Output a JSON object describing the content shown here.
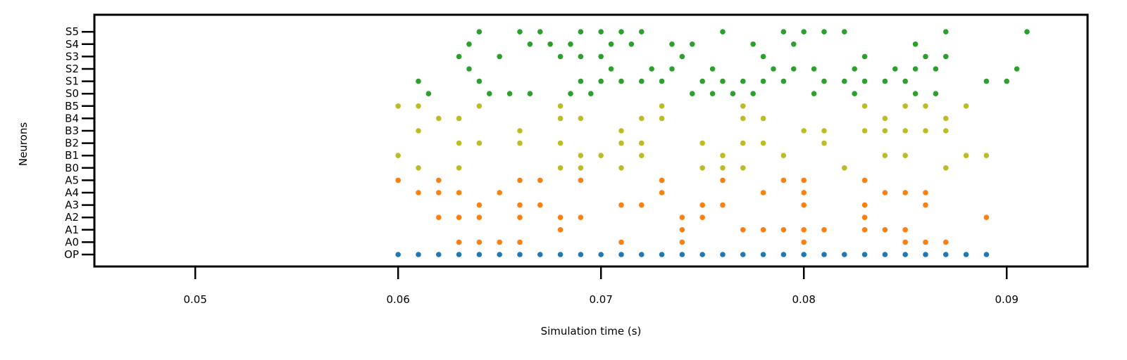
{
  "chart_data": {
    "type": "scatter",
    "title": "",
    "xlabel": "Simulation time (s)",
    "ylabel": "Neurons",
    "xlim": [
      0.045,
      0.094
    ],
    "xticks": [
      0.05,
      0.06,
      0.07,
      0.08,
      0.09
    ],
    "xtick_labels": [
      "0.05",
      "0.06",
      "0.07",
      "0.08",
      "0.09"
    ],
    "grid": false,
    "categories": [
      "OP",
      "A0",
      "A1",
      "A2",
      "A3",
      "A4",
      "A5",
      "B0",
      "B1",
      "B2",
      "B3",
      "B4",
      "B5",
      "S0",
      "S1",
      "S2",
      "S3",
      "S4",
      "S5"
    ],
    "series": [
      {
        "color": "#1f77b4",
        "neurons": [
          {
            "label": "OP",
            "times": [
              0.06,
              0.061,
              0.062,
              0.063,
              0.064,
              0.065,
              0.066,
              0.067,
              0.068,
              0.069,
              0.07,
              0.071,
              0.072,
              0.073,
              0.074,
              0.075,
              0.076,
              0.077,
              0.078,
              0.079,
              0.08,
              0.081,
              0.082,
              0.083,
              0.084,
              0.085,
              0.086,
              0.087,
              0.088,
              0.089
            ]
          }
        ]
      },
      {
        "color": "#ff7f0e",
        "neurons": [
          {
            "label": "A0",
            "times": [
              0.063,
              0.064,
              0.065,
              0.066,
              0.071,
              0.074,
              0.08,
              0.085,
              0.086,
              0.087
            ]
          },
          {
            "label": "A1",
            "times": [
              0.068,
              0.074,
              0.077,
              0.078,
              0.079,
              0.08,
              0.081,
              0.083,
              0.084,
              0.085
            ]
          },
          {
            "label": "A2",
            "times": [
              0.062,
              0.063,
              0.064,
              0.066,
              0.068,
              0.069,
              0.074,
              0.075,
              0.083,
              0.089
            ]
          },
          {
            "label": "A3",
            "times": [
              0.064,
              0.066,
              0.067,
              0.071,
              0.072,
              0.075,
              0.076,
              0.08,
              0.083,
              0.086
            ]
          },
          {
            "label": "A4",
            "times": [
              0.061,
              0.062,
              0.063,
              0.065,
              0.073,
              0.078,
              0.08,
              0.084,
              0.085,
              0.086
            ]
          },
          {
            "label": "A5",
            "times": [
              0.06,
              0.062,
              0.066,
              0.067,
              0.069,
              0.073,
              0.076,
              0.079,
              0.08,
              0.083
            ]
          }
        ]
      },
      {
        "color": "#bcbd22",
        "neurons": [
          {
            "label": "B0",
            "times": [
              0.061,
              0.063,
              0.068,
              0.069,
              0.071,
              0.075,
              0.076,
              0.077,
              0.082,
              0.087
            ]
          },
          {
            "label": "B1",
            "times": [
              0.06,
              0.069,
              0.07,
              0.072,
              0.076,
              0.079,
              0.084,
              0.085,
              0.088,
              0.089
            ]
          },
          {
            "label": "B2",
            "times": [
              0.063,
              0.064,
              0.066,
              0.068,
              0.071,
              0.072,
              0.075,
              0.077,
              0.078,
              0.081
            ]
          },
          {
            "label": "B3",
            "times": [
              0.061,
              0.066,
              0.071,
              0.08,
              0.081,
              0.083,
              0.084,
              0.085,
              0.086,
              0.087
            ]
          },
          {
            "label": "B4",
            "times": [
              0.062,
              0.063,
              0.068,
              0.069,
              0.072,
              0.073,
              0.077,
              0.078,
              0.084,
              0.087
            ]
          },
          {
            "label": "B5",
            "times": [
              0.06,
              0.061,
              0.064,
              0.068,
              0.073,
              0.077,
              0.083,
              0.085,
              0.086,
              0.088
            ]
          }
        ]
      },
      {
        "color": "#2ca02c",
        "neurons": [
          {
            "label": "S0",
            "times": [
              0.0615,
              0.0645,
              0.0655,
              0.0665,
              0.0685,
              0.0695,
              0.0745,
              0.0755,
              0.0765,
              0.0775,
              0.0805,
              0.0825,
              0.0855,
              0.0865
            ]
          },
          {
            "label": "S1",
            "times": [
              0.061,
              0.064,
              0.069,
              0.07,
              0.071,
              0.072,
              0.073,
              0.075,
              0.076,
              0.077,
              0.078,
              0.079,
              0.081,
              0.082,
              0.083,
              0.084,
              0.085,
              0.089,
              0.09
            ]
          },
          {
            "label": "S2",
            "times": [
              0.0635,
              0.0705,
              0.0725,
              0.0735,
              0.0755,
              0.0785,
              0.0795,
              0.0805,
              0.0825,
              0.0845,
              0.0855,
              0.0865,
              0.0905
            ]
          },
          {
            "label": "S3",
            "times": [
              0.063,
              0.065,
              0.068,
              0.069,
              0.07,
              0.074,
              0.078,
              0.083,
              0.086,
              0.087
            ]
          },
          {
            "label": "S4",
            "times": [
              0.0635,
              0.0665,
              0.0675,
              0.0685,
              0.0705,
              0.0715,
              0.0735,
              0.0745,
              0.0775,
              0.0795,
              0.0855
            ]
          },
          {
            "label": "S5",
            "times": [
              0.064,
              0.066,
              0.067,
              0.069,
              0.07,
              0.071,
              0.072,
              0.076,
              0.079,
              0.08,
              0.081,
              0.082,
              0.087,
              0.091
            ]
          }
        ]
      }
    ]
  }
}
